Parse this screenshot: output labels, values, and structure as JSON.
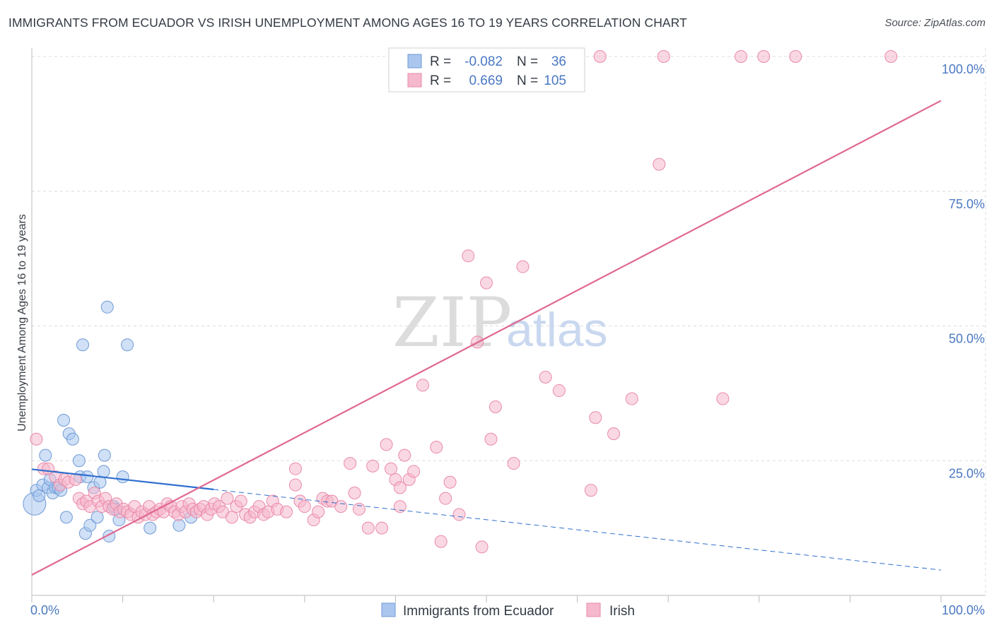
{
  "title": "IMMIGRANTS FROM ECUADOR VS IRISH UNEMPLOYMENT AMONG AGES 16 TO 19 YEARS CORRELATION CHART",
  "source": "Source: ZipAtlas.com",
  "watermark": {
    "zip": "ZIP",
    "atlas": "atlas"
  },
  "colors": {
    "blue_fill": "#aac6ee",
    "blue_stroke": "#6f9bd6",
    "blue_line": "#2f6fce",
    "pink_fill": "#f5b8cc",
    "pink_stroke": "#e98aaa",
    "pink_line": "#e06890",
    "grid": "#dcdcdc",
    "tick_text": "#4a78c2"
  },
  "legend": {
    "r_label": "R =",
    "n_label": "N =",
    "rows": [
      {
        "r": "-0.082",
        "n": "36"
      },
      {
        "r": "0.669",
        "n": "105"
      }
    ]
  },
  "chart_data": {
    "type": "scatter",
    "title": "IMMIGRANTS FROM ECUADOR VS IRISH UNEMPLOYMENT AMONG AGES 16 TO 19 YEARS CORRELATION CHART",
    "xlabel": "",
    "ylabel": "Unemployment Among Ages 16 to 19 years",
    "xlim": [
      0,
      100
    ],
    "ylim": [
      0,
      100
    ],
    "x_tick_labels": [
      "0.0%",
      "100.0%"
    ],
    "y_ticks": [
      25,
      50,
      75,
      100
    ],
    "y_tick_labels": [
      "25.0%",
      "50.0%",
      "75.0%",
      "100.0%"
    ],
    "series": [
      {
        "name": "Immigrants from Ecuador",
        "points": [
          [
            0.3,
            17.0
          ],
          [
            0.5,
            19.5
          ],
          [
            0.8,
            18.5
          ],
          [
            1.2,
            20.5
          ],
          [
            1.5,
            26.0
          ],
          [
            1.8,
            20.0
          ],
          [
            2.0,
            21.5
          ],
          [
            2.3,
            19.0
          ],
          [
            2.6,
            20.0
          ],
          [
            2.9,
            20.0
          ],
          [
            3.2,
            19.5
          ],
          [
            3.5,
            32.5
          ],
          [
            3.8,
            14.5
          ],
          [
            4.1,
            30.0
          ],
          [
            4.5,
            29.0
          ],
          [
            5.3,
            22.0
          ],
          [
            5.2,
            25.0
          ],
          [
            5.6,
            46.5
          ],
          [
            5.9,
            11.5
          ],
          [
            6.1,
            22.0
          ],
          [
            6.4,
            13.0
          ],
          [
            6.8,
            20.0
          ],
          [
            7.2,
            14.5
          ],
          [
            7.5,
            21.0
          ],
          [
            7.9,
            23.0
          ],
          [
            8.0,
            26.0
          ],
          [
            8.3,
            53.5
          ],
          [
            8.5,
            11.0
          ],
          [
            9.0,
            16.5
          ],
          [
            9.6,
            14.0
          ],
          [
            10.0,
            22.0
          ],
          [
            10.5,
            46.5
          ],
          [
            13.0,
            12.5
          ],
          [
            16.2,
            13.0
          ],
          [
            17.5,
            14.5
          ],
          [
            9.2,
            16.0
          ]
        ]
      },
      {
        "name": "Irish",
        "points": [
          [
            0.5,
            29.0
          ],
          [
            1.3,
            23.5
          ],
          [
            1.8,
            23.5
          ],
          [
            2.6,
            22.0
          ],
          [
            3.1,
            20.5
          ],
          [
            3.6,
            21.5
          ],
          [
            4.0,
            21.0
          ],
          [
            4.8,
            21.5
          ],
          [
            5.2,
            18.0
          ],
          [
            5.6,
            17.0
          ],
          [
            6.0,
            17.5
          ],
          [
            6.4,
            16.5
          ],
          [
            6.9,
            19.0
          ],
          [
            7.3,
            17.5
          ],
          [
            7.7,
            16.5
          ],
          [
            8.1,
            18.0
          ],
          [
            8.5,
            16.5
          ],
          [
            8.9,
            16.0
          ],
          [
            9.3,
            17.0
          ],
          [
            9.7,
            15.5
          ],
          [
            10.1,
            16.0
          ],
          [
            10.5,
            15.5
          ],
          [
            10.9,
            15.0
          ],
          [
            11.3,
            16.5
          ],
          [
            11.7,
            14.5
          ],
          [
            12.1,
            15.5
          ],
          [
            12.5,
            15.0
          ],
          [
            12.9,
            16.5
          ],
          [
            13.3,
            15.0
          ],
          [
            13.7,
            15.5
          ],
          [
            14.1,
            16.0
          ],
          [
            14.5,
            15.5
          ],
          [
            14.9,
            17.0
          ],
          [
            15.3,
            16.5
          ],
          [
            15.7,
            15.5
          ],
          [
            16.1,
            15.0
          ],
          [
            16.5,
            16.5
          ],
          [
            16.9,
            15.5
          ],
          [
            17.3,
            17.0
          ],
          [
            17.7,
            16.0
          ],
          [
            18.1,
            15.5
          ],
          [
            18.5,
            16.0
          ],
          [
            18.9,
            16.5
          ],
          [
            19.3,
            15.0
          ],
          [
            19.7,
            16.0
          ],
          [
            20.1,
            17.0
          ],
          [
            20.6,
            16.5
          ],
          [
            21.0,
            15.5
          ],
          [
            21.5,
            18.0
          ],
          [
            22.0,
            14.5
          ],
          [
            22.5,
            16.5
          ],
          [
            23.0,
            17.5
          ],
          [
            23.5,
            15.0
          ],
          [
            24.0,
            14.5
          ],
          [
            24.5,
            15.5
          ],
          [
            25.0,
            16.5
          ],
          [
            25.5,
            15.0
          ],
          [
            26.0,
            15.5
          ],
          [
            26.5,
            17.5
          ],
          [
            27.0,
            16.0
          ],
          [
            28.0,
            15.5
          ],
          [
            29.0,
            20.5
          ],
          [
            29.5,
            17.5
          ],
          [
            30.0,
            16.5
          ],
          [
            31.0,
            14.0
          ],
          [
            31.5,
            15.5
          ],
          [
            32.0,
            18.0
          ],
          [
            32.5,
            17.5
          ],
          [
            33.0,
            17.5
          ],
          [
            34.0,
            16.5
          ],
          [
            35.0,
            24.5
          ],
          [
            35.5,
            19.0
          ],
          [
            36.0,
            16.0
          ],
          [
            37.0,
            12.5
          ],
          [
            37.5,
            24.0
          ],
          [
            38.5,
            12.5
          ],
          [
            39.0,
            28.0
          ],
          [
            39.5,
            23.5
          ],
          [
            40.0,
            21.5
          ],
          [
            40.5,
            20.0
          ],
          [
            41.0,
            26.0
          ],
          [
            41.5,
            21.5
          ],
          [
            42.0,
            23.0
          ],
          [
            43.0,
            39.0
          ],
          [
            44.5,
            27.5
          ],
          [
            45.0,
            10.0
          ],
          [
            45.5,
            18.0
          ],
          [
            46.0,
            21.0
          ],
          [
            47.0,
            15.0
          ],
          [
            29.0,
            23.5
          ],
          [
            40.5,
            16.5
          ],
          [
            48.0,
            63.0
          ],
          [
            49.0,
            47.0
          ],
          [
            49.5,
            9.0
          ],
          [
            50.0,
            58.0
          ],
          [
            51.0,
            35.0
          ],
          [
            54.0,
            61.0
          ],
          [
            56.5,
            40.5
          ],
          [
            58.0,
            38.0
          ],
          [
            62.0,
            33.0
          ],
          [
            64.0,
            30.0
          ],
          [
            66.0,
            36.5
          ],
          [
            69.0,
            80.0
          ],
          [
            76.0,
            36.5
          ],
          [
            50.5,
            29.0
          ],
          [
            53.0,
            24.5
          ],
          [
            61.5,
            19.5
          ]
        ],
        "points_at_top": [
          [
            44.0,
            100.0
          ],
          [
            47.5,
            100.0
          ],
          [
            53.0,
            100.0
          ],
          [
            56.0,
            100.0
          ],
          [
            62.5,
            100.0
          ],
          [
            69.5,
            100.0
          ],
          [
            78.0,
            100.0
          ],
          [
            80.5,
            100.0
          ],
          [
            84.0,
            100.0
          ],
          [
            94.5,
            100.0
          ]
        ]
      }
    ],
    "trend_lines": [
      {
        "series": "Immigrants from Ecuador",
        "x": [
          0,
          100
        ],
        "y": [
          23.4,
          4.7
        ],
        "solid_until_x": 20
      },
      {
        "series": "Irish",
        "x": [
          0,
          100
        ],
        "y": [
          3.8,
          91.8
        ]
      }
    ]
  },
  "bottom_legend": [
    "Immigrants from Ecuador",
    "Irish"
  ]
}
